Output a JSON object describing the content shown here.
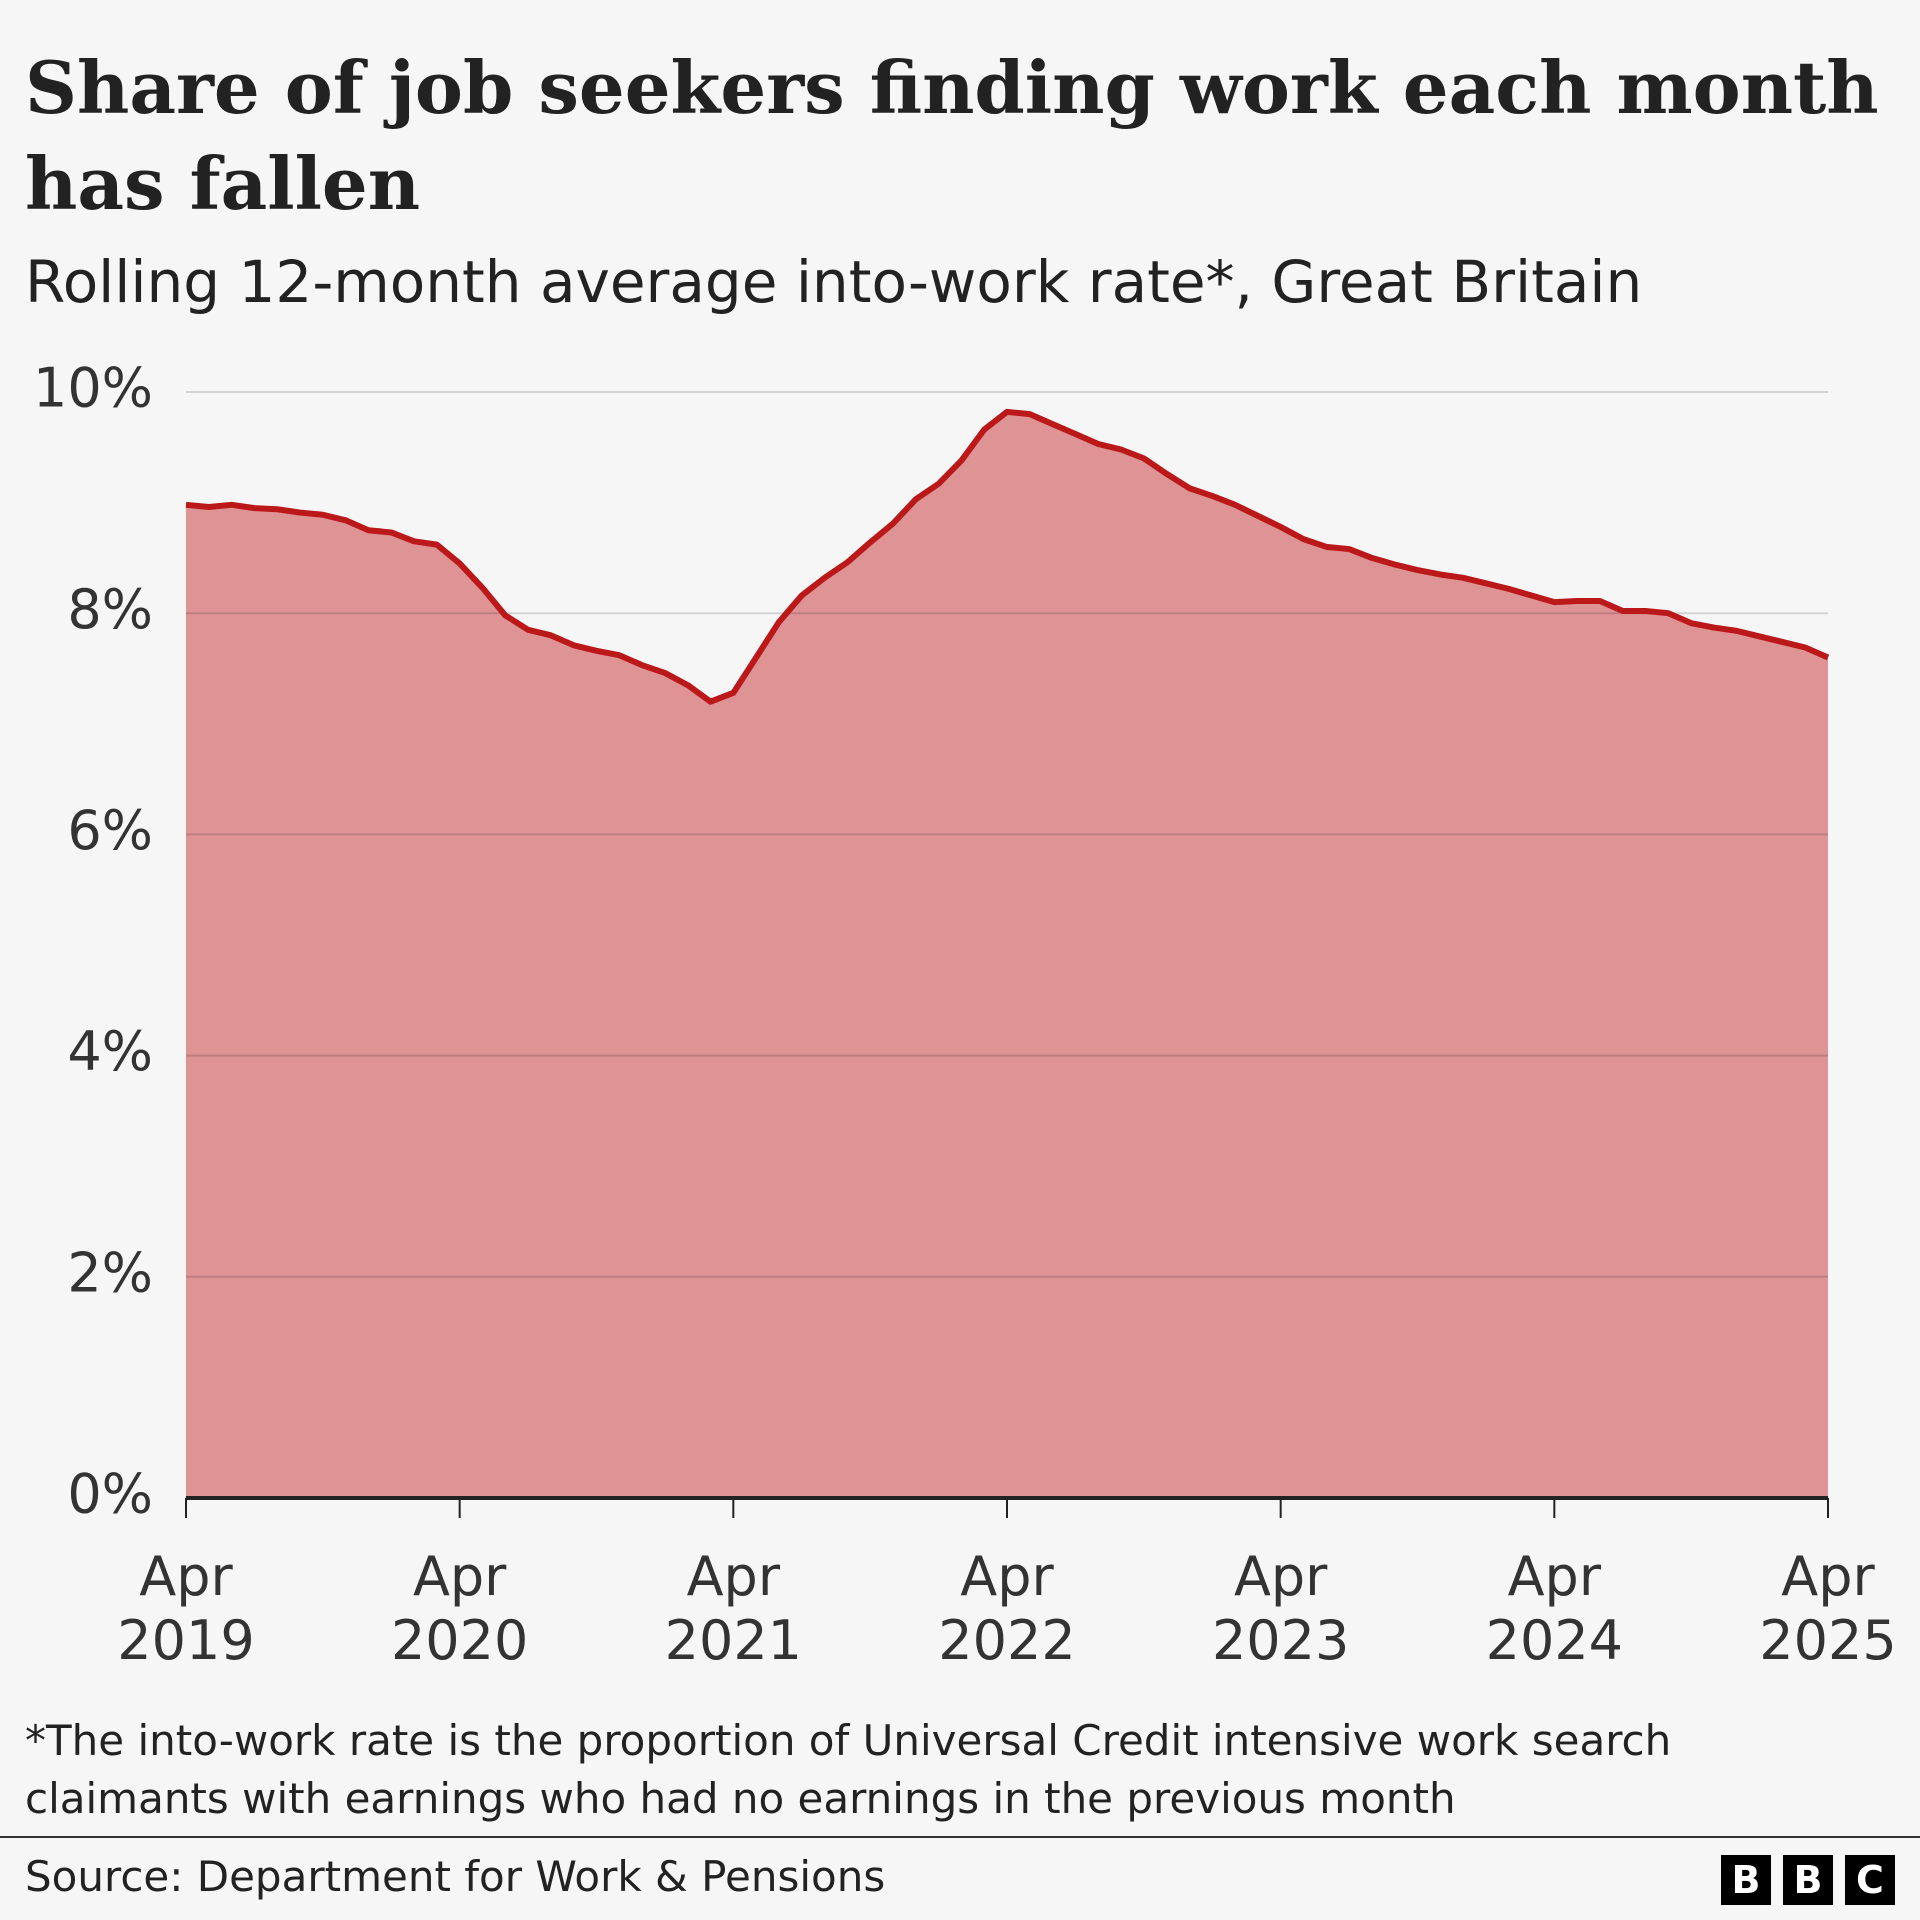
{
  "chart_data": {
    "type": "area",
    "title": "Share of job seekers finding work each month has fallen",
    "subtitle": "Rolling 12-month average into-work rate*, Great Britain",
    "note": "*The into-work rate is the proportion of Universal Credit intensive work search claimants with earnings who had no earnings in the previous month",
    "source": "Source: Department for Work & Pensions",
    "logo": [
      "B",
      "B",
      "C"
    ],
    "categories": [
      "Apr 2019",
      null,
      null,
      null,
      null,
      null,
      null,
      null,
      null,
      null,
      null,
      null,
      "Apr 2020",
      null,
      null,
      null,
      null,
      null,
      null,
      null,
      null,
      null,
      null,
      null,
      "Apr 2021",
      null,
      null,
      null,
      null,
      null,
      null,
      null,
      null,
      null,
      null,
      null,
      "Apr 2022",
      null,
      null,
      null,
      null,
      null,
      null,
      null,
      null,
      null,
      null,
      null,
      "Apr 2023",
      null,
      null,
      null,
      null,
      null,
      null,
      null,
      null,
      null,
      null,
      null,
      "Apr 2024",
      null,
      null,
      null,
      null,
      null,
      null,
      null,
      null,
      null,
      null,
      null,
      "Apr 2025"
    ],
    "values": [
      8.98,
      8.96,
      8.98,
      8.95,
      8.94,
      8.91,
      8.89,
      8.84,
      8.75,
      8.73,
      8.65,
      8.62,
      8.45,
      8.23,
      7.98,
      7.85,
      7.8,
      7.71,
      7.66,
      7.62,
      7.53,
      7.46,
      7.35,
      7.2,
      7.28,
      7.6,
      7.92,
      8.16,
      8.32,
      8.46,
      8.64,
      8.81,
      9.03,
      9.17,
      9.38,
      9.66,
      9.82,
      9.8,
      9.71,
      9.62,
      9.53,
      9.48,
      9.4,
      9.26,
      9.13,
      9.06,
      8.98,
      8.88,
      8.78,
      8.67,
      8.6,
      8.58,
      8.5,
      8.44,
      8.39,
      8.35,
      8.32,
      8.27,
      8.22,
      8.16,
      8.1,
      8.11,
      8.11,
      8.02,
      8.02,
      8.0,
      7.91,
      7.87,
      7.84,
      7.79,
      7.74,
      7.69,
      7.6
    ],
    "color": "#bb1919",
    "fill_color": "#de9395",
    "ylim": [
      0,
      10
    ],
    "yticks": [
      {
        "value": 0,
        "label": "0%"
      },
      {
        "value": 2,
        "label": "2%"
      },
      {
        "value": 4,
        "label": "4%"
      },
      {
        "value": 6,
        "label": "6%"
      },
      {
        "value": 8,
        "label": "8%"
      },
      {
        "value": 10,
        "label": "10%"
      }
    ],
    "grid": true
  }
}
